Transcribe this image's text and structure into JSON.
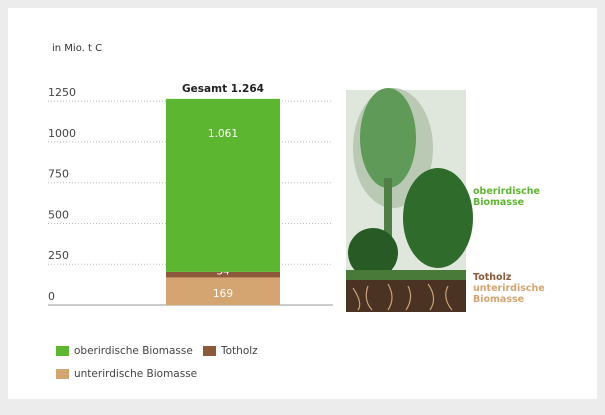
{
  "chart_data": {
    "type": "stacked_bar",
    "axis_label": "in Mio. t C",
    "total_label": "Gesamt 1.264",
    "categories": [
      null
    ],
    "series": [
      {
        "name": "unterirdische Biomasse",
        "color": "#d4a570",
        "values": [
          169
        ]
      },
      {
        "name": "Totholz",
        "color": "#8c5a3a",
        "values": [
          34
        ]
      },
      {
        "name": "oberirdische Biomasse",
        "color": "#5db630",
        "values": [
          1061
        ],
        "value_labels": [
          "1.061"
        ]
      }
    ],
    "ylim": [
      0,
      1300
    ],
    "yticks": [
      0,
      250,
      500,
      750,
      1000,
      1250
    ],
    "grid": true
  }
}
